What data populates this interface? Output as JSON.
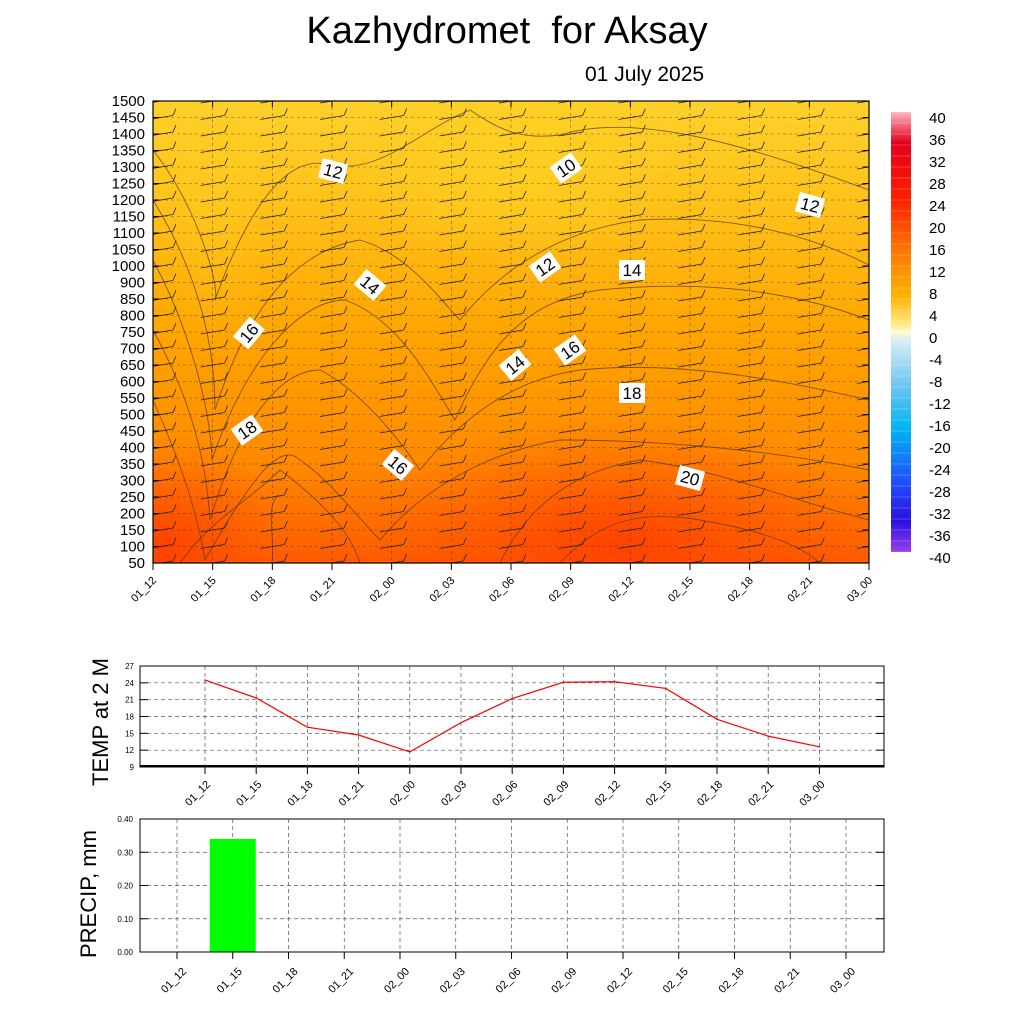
{
  "title": "Kazhydromet  for Aksay",
  "subtitle": "01 July 2025",
  "time_labels": [
    "01_12",
    "01_15",
    "01_18",
    "01_21",
    "02_00",
    "02_03",
    "02_06",
    "02_09",
    "02_12",
    "02_15",
    "02_18",
    "02_21",
    "03_00"
  ],
  "chart_data": [
    {
      "type": "heatmap",
      "title": "Kazhydromet  for Aksay",
      "subtitle": "01 July 2025",
      "x": [
        "01_12",
        "01_15",
        "01_18",
        "01_21",
        "02_00",
        "02_03",
        "02_06",
        "02_09",
        "02_12",
        "02_15",
        "02_18",
        "02_21",
        "03_00"
      ],
      "y_ticks": [
        50,
        100,
        150,
        200,
        250,
        300,
        350,
        400,
        450,
        500,
        550,
        600,
        650,
        700,
        750,
        800,
        850,
        900,
        1000,
        1050,
        1100,
        1150,
        1200,
        1250,
        1300,
        1350,
        1400,
        1450,
        1500
      ],
      "colorbar": {
        "ticks": [
          40,
          36,
          32,
          28,
          24,
          20,
          16,
          12,
          8,
          4,
          0,
          -4,
          -8,
          -12,
          -16,
          -20,
          -24,
          -28,
          -32,
          -36,
          -40
        ],
        "range": [
          -40,
          40
        ],
        "colors": {
          "warm_high": "#ff0000",
          "warm_mid": "#ff8c00",
          "warm_low": "#ffd700",
          "pale": "#fff9a6",
          "cold_low": "#a8d8f0",
          "cold_mid": "#1e90ff",
          "cold_high": "#8a2be2"
        }
      },
      "contour_labels": [
        "12",
        "10",
        "12",
        "14",
        "12",
        "14",
        "16",
        "16",
        "14",
        "18",
        "18",
        "16",
        "20"
      ]
    },
    {
      "type": "line",
      "ylabel": "TEMP at 2 M",
      "x": [
        "01_12",
        "01_15",
        "01_18",
        "01_21",
        "02_00",
        "02_03",
        "02_06",
        "02_09",
        "02_12",
        "02_15",
        "02_18",
        "02_21",
        "03_00"
      ],
      "y_ticks": [
        9,
        12,
        15,
        18,
        21,
        24,
        27
      ],
      "ylim": [
        9,
        27
      ],
      "series": [
        {
          "values": [
            24.5,
            21.3,
            16.1,
            14.7,
            11.7,
            16.9,
            21.2,
            24.1,
            24.2,
            23.0,
            17.5,
            14.5,
            12.6
          ],
          "color": "#ff0000"
        }
      ]
    },
    {
      "type": "bar",
      "ylabel": "PRECIP, mm",
      "x": [
        "01_12",
        "01_15",
        "01_18",
        "01_21",
        "02_00",
        "02_03",
        "02_06",
        "02_09",
        "02_12",
        "02_15",
        "02_18",
        "02_21",
        "03_00"
      ],
      "y_ticks": [
        "0.00",
        "0.10",
        "0.20",
        "0.30",
        "0.40"
      ],
      "ylim": [
        0,
        0.4
      ],
      "values": [
        0,
        0.34,
        0,
        0,
        0,
        0,
        0,
        0,
        0,
        0,
        0,
        0,
        0
      ],
      "color": "#00ff00"
    }
  ]
}
